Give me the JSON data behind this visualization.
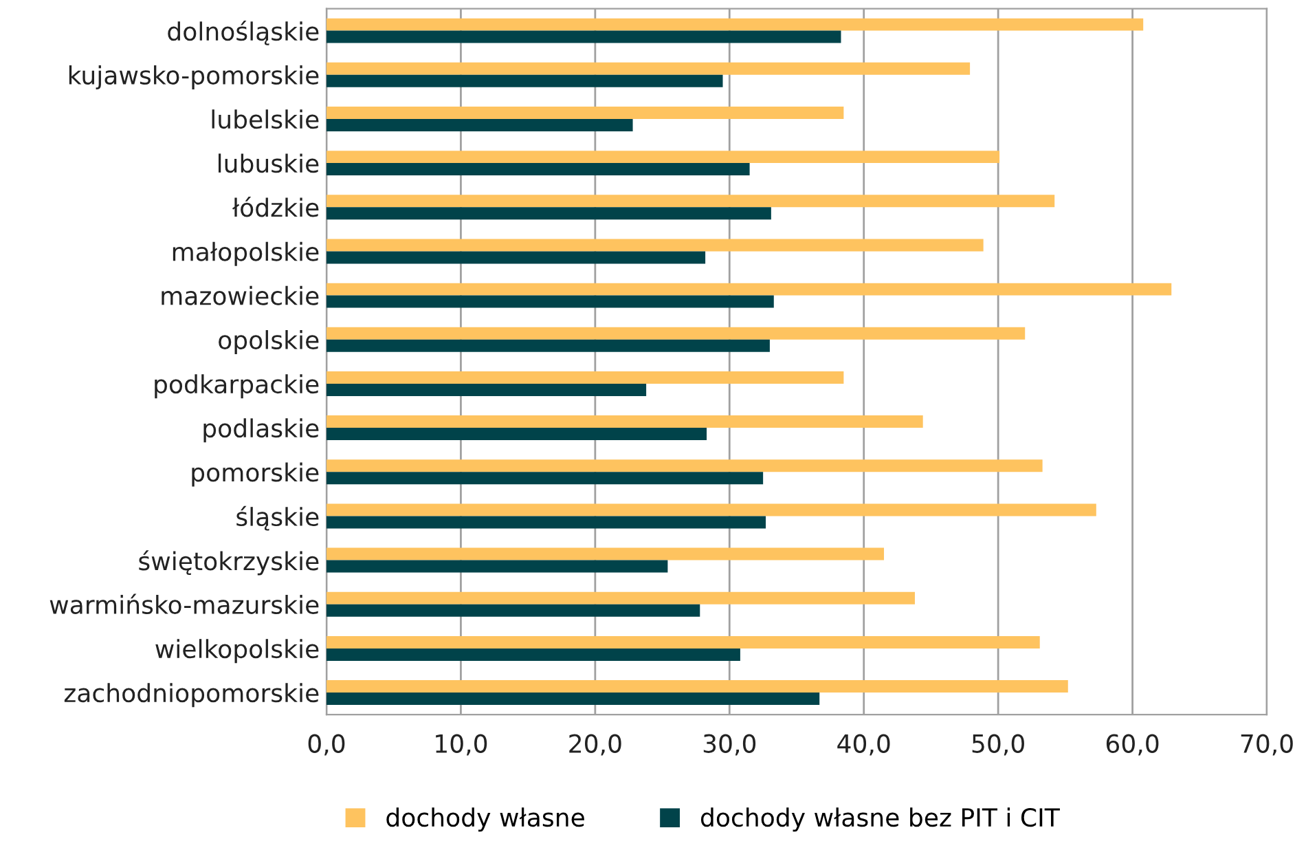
{
  "chart_data": {
    "type": "bar",
    "orientation": "horizontal",
    "categories": [
      "dolnośląskie",
      "kujawsko-pomorskie",
      "lubelskie",
      "lubuskie",
      "łódzkie",
      "małopolskie",
      "mazowieckie",
      "opolskie",
      "podkarpackie",
      "podlaskie",
      "pomorskie",
      "śląskie",
      "świętokrzyskie",
      "warmińsko-mazurskie",
      "wielkopolskie",
      "zachodniopomorskie"
    ],
    "series": [
      {
        "name": "dochody własne",
        "color": "#fec35f",
        "values": [
          60.8,
          47.9,
          38.5,
          50.1,
          54.2,
          48.9,
          62.9,
          52.0,
          38.5,
          44.4,
          53.3,
          57.3,
          41.5,
          43.8,
          53.1,
          55.2
        ]
      },
      {
        "name": "dochody własne bez PIT i CIT",
        "color": "#01434a",
        "values": [
          38.3,
          29.5,
          22.8,
          31.5,
          33.1,
          28.2,
          33.3,
          33.0,
          23.8,
          28.3,
          32.5,
          32.7,
          25.4,
          27.8,
          30.8,
          36.7
        ]
      }
    ],
    "xlim": [
      0,
      70
    ],
    "xticks": [
      {
        "value": 0,
        "label": "0,0"
      },
      {
        "value": 10,
        "label": "10,0"
      },
      {
        "value": 20,
        "label": "20,0"
      },
      {
        "value": 30,
        "label": "30,0"
      },
      {
        "value": 40,
        "label": "40,0"
      },
      {
        "value": 50,
        "label": "50,0"
      },
      {
        "value": 60,
        "label": "60,0"
      },
      {
        "value": 70,
        "label": "70,0"
      }
    ],
    "grid": "x",
    "legend": "bottom"
  }
}
